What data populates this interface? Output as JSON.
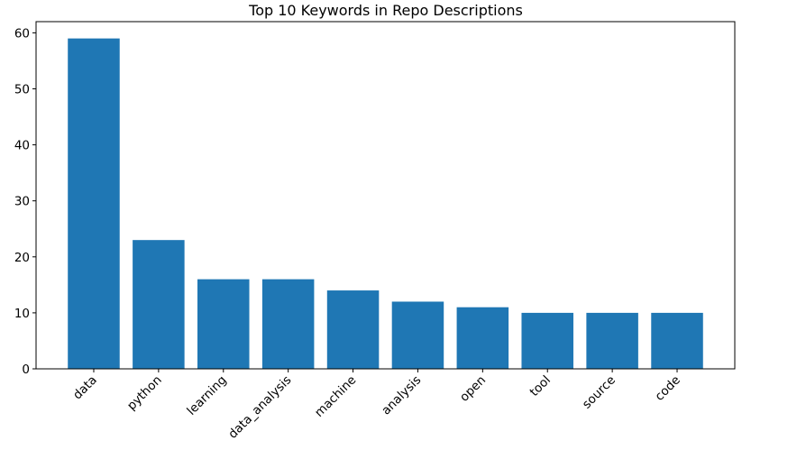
{
  "chart_data": {
    "type": "bar",
    "title": "Top 10 Keywords in Repo Descriptions",
    "xlabel": "",
    "ylabel": "",
    "categories": [
      "data",
      "python",
      "learning",
      "data_analysis",
      "machine",
      "analysis",
      "open",
      "tool",
      "source",
      "code"
    ],
    "values": [
      59,
      23,
      16,
      16,
      14,
      12,
      11,
      10,
      10,
      10
    ],
    "ylim": [
      0,
      62
    ],
    "yticks": [
      0,
      10,
      20,
      30,
      40,
      50,
      60
    ],
    "bar_color": "#1f77b4",
    "grid": false,
    "legend": "none",
    "xtick_rotation": 45
  }
}
